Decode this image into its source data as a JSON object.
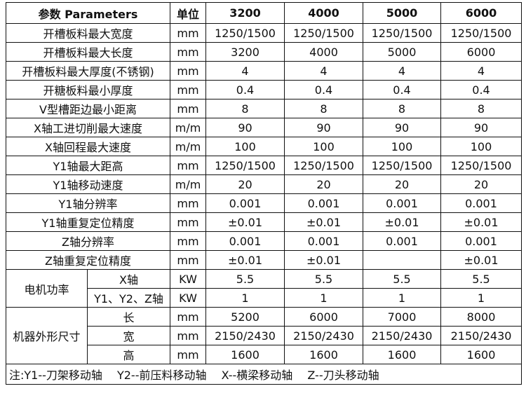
{
  "header": {
    "param": "参数 Parameters",
    "unit": "单位",
    "models": [
      "3200",
      "4000",
      "5000",
      "6000"
    ]
  },
  "rows": [
    {
      "label": "开槽板料最大宽度",
      "unit": "mm",
      "values": [
        "1250/1500",
        "1250/1500",
        "1250/1500",
        "1250/1500"
      ]
    },
    {
      "label": "开槽板料最大长度",
      "unit": "mm",
      "values": [
        "3200",
        "4000",
        "5000",
        "6000"
      ]
    },
    {
      "label": "开槽板料最大厚度(不锈钢)",
      "unit": "mm",
      "values": [
        "4",
        "4",
        "4",
        "4"
      ]
    },
    {
      "label": "开糖板料最小厚度",
      "unit": "mm",
      "values": [
        "0.4",
        "0.4",
        "0.4",
        "0.4"
      ]
    },
    {
      "label": "V型槽距边最小距离",
      "unit": "mm",
      "values": [
        "8",
        "8",
        "8",
        "8"
      ]
    },
    {
      "label": "X轴工进切削最大速度",
      "unit": "m/m",
      "values": [
        "90",
        "90",
        "90",
        "90"
      ]
    },
    {
      "label": "X轴回程最大速度",
      "unit": "m/m",
      "values": [
        "100",
        "100",
        "100",
        "100"
      ]
    },
    {
      "label": "Y1轴最大距高",
      "unit": "mm",
      "values": [
        "1250/1500",
        "1250/1500",
        "1250/1500",
        "1250/1500"
      ]
    },
    {
      "label": "Y1轴移动速度",
      "unit": "m/m",
      "values": [
        "20",
        "20",
        "20",
        "20"
      ]
    },
    {
      "label": "Y1轴分辨率",
      "unit": "mm",
      "values": [
        "0.001",
        "0.001",
        "0.001",
        "0.001"
      ]
    },
    {
      "label": "Y1轴重复定位精度",
      "unit": "mm",
      "values": [
        "±0.01",
        "±0.01",
        "±0.01",
        "±0.01"
      ]
    },
    {
      "label": "Z轴分辨率",
      "unit": "mm",
      "values": [
        "0.001",
        "0.001",
        "0.001",
        "0.001"
      ]
    },
    {
      "label": "Z轴重复定位精度",
      "unit": "mm",
      "values": [
        "±0.01",
        "±0.01",
        "",
        "±0.01"
      ]
    }
  ],
  "motor": {
    "label": "电机功率",
    "sub": [
      {
        "label": "X轴",
        "unit": "KW",
        "values": [
          "5.5",
          "5.5",
          "5.5",
          "5.5"
        ]
      },
      {
        "label": "Y1、Y2、Z轴",
        "unit": "KW",
        "values": [
          "1",
          "1",
          "1",
          "1"
        ]
      }
    ]
  },
  "dims": {
    "label": "机器外形尺寸",
    "sub": [
      {
        "label": "长",
        "unit": "mm",
        "values": [
          "5200",
          "6000",
          "7000",
          "8000"
        ]
      },
      {
        "label": "宽",
        "unit": "mm",
        "values": [
          "2150/2430",
          "2150/2430",
          "2150/2430",
          "2150/2430"
        ]
      },
      {
        "label": "高",
        "unit": "mm",
        "values": [
          "1600",
          "1600",
          "1600",
          "1600"
        ]
      }
    ]
  },
  "note": "注:Y1--刀架移动轴　 Y2--前压料移动轴　 X--横梁移动轴　 Z--刀头移动轴"
}
